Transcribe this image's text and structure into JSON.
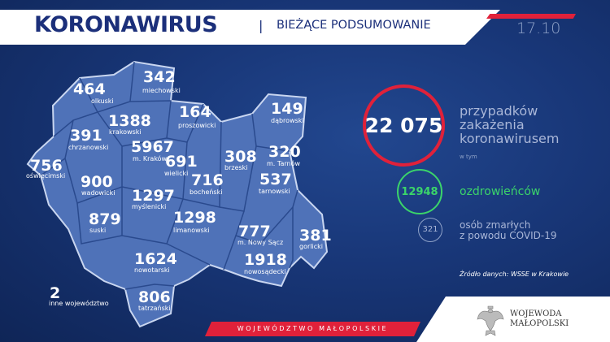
{
  "header": {
    "title": "KORONAWIRUS",
    "separator": "|",
    "subtitle": "BIEŻĄCE PODSUMOWANIE",
    "date": "17.10"
  },
  "districts": [
    {
      "value": "464",
      "name": "olkuski"
    },
    {
      "value": "342",
      "name": "miechowski"
    },
    {
      "value": "1388",
      "name": "krakowski"
    },
    {
      "value": "164",
      "name": "proszowicki"
    },
    {
      "value": "149",
      "name": "dąbrowski"
    },
    {
      "value": "391",
      "name": "chrzanowski"
    },
    {
      "value": "5967",
      "name": "m. Kraków"
    },
    {
      "value": "691",
      "name": "wielicki"
    },
    {
      "value": "308",
      "name": "brzeski"
    },
    {
      "value": "320",
      "name": "m. Tarnów"
    },
    {
      "value": "756",
      "name": "oświęcimski"
    },
    {
      "value": "900",
      "name": "wadowicki"
    },
    {
      "value": "716",
      "name": "bocheński"
    },
    {
      "value": "537",
      "name": "tarnowski"
    },
    {
      "value": "1297",
      "name": "myślenicki"
    },
    {
      "value": "879",
      "name": "suski"
    },
    {
      "value": "1298",
      "name": "limanowski"
    },
    {
      "value": "777",
      "name": "m. Nowy Sącz"
    },
    {
      "value": "381",
      "name": "gorlicki"
    },
    {
      "value": "1624",
      "name": "nowotarski"
    },
    {
      "value": "1918",
      "name": "nowosądecki"
    },
    {
      "value": "2",
      "name": "inne województwo"
    },
    {
      "value": "806",
      "name": "tatrzański"
    }
  ],
  "summary": {
    "total": "22 075",
    "total_label_1": "przypadków",
    "total_label_2": "zakażenia",
    "total_label_3": "koronawirusem",
    "including": "w tym",
    "recovered": "12948",
    "recovered_label": "ozdrowieńców",
    "deaths": "321",
    "deaths_label_1": "osób zmarłych",
    "deaths_label_2": "z powodu COVID-19",
    "source": "Źródło danych: WSSE w Krakowie"
  },
  "colors": {
    "background": "#183677",
    "map": "#4f72b8",
    "accent_red": "#e0213a",
    "recovered_green": "#3bd46a"
  },
  "footer": {
    "banner": "WOJEWÓDZTWO MAŁOPOLSKIE",
    "voivode_1": "WOJEWODA",
    "voivode_2": "MAŁOPOLSKI",
    "emblem_icon": "polish-eagle-icon"
  }
}
